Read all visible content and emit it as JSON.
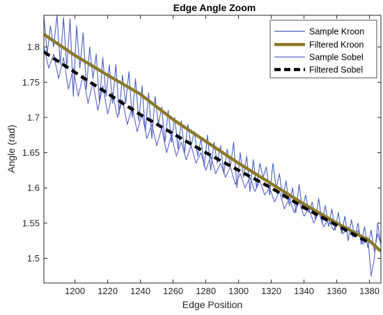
{
  "chart_data": {
    "type": "line",
    "title": "Edge Angle Zoom",
    "xlabel": "Edge Position",
    "ylabel": "Angle (rad)",
    "xlim": [
      1181,
      1387
    ],
    "ylim": [
      1.465,
      1.845
    ],
    "x_ticks": [
      1200,
      1220,
      1240,
      1260,
      1280,
      1300,
      1320,
      1340,
      1360,
      1380
    ],
    "y_ticks": [
      1.5,
      1.55,
      1.6,
      1.65,
      1.7,
      1.75,
      1.8
    ],
    "x_tick_labels": [
      "1200",
      "1220",
      "1240",
      "1260",
      "1280",
      "1300",
      "1320",
      "1340",
      "1360",
      "1380"
    ],
    "y_tick_labels": [
      "1.5",
      "1.55",
      "1.6",
      "1.65",
      "1.7",
      "1.75",
      "1.8"
    ],
    "grid": false,
    "legend_position": "top-right",
    "series": [
      {
        "name": "Sample Kroon",
        "style": "thin-solid",
        "color": "#4a5fc1",
        "x": [
          1181,
          1183,
          1185,
          1187,
          1189,
          1191,
          1193,
          1195,
          1197,
          1199,
          1201,
          1203,
          1205,
          1207,
          1209,
          1211,
          1213,
          1215,
          1217,
          1219,
          1221,
          1223,
          1225,
          1227,
          1229,
          1231,
          1233,
          1235,
          1237,
          1239,
          1241,
          1243,
          1245,
          1247,
          1249,
          1251,
          1253,
          1255,
          1257,
          1259,
          1261,
          1263,
          1265,
          1267,
          1269,
          1271,
          1273,
          1275,
          1277,
          1279,
          1281,
          1283,
          1285,
          1287,
          1289,
          1291,
          1293,
          1295,
          1297,
          1299,
          1301,
          1303,
          1305,
          1307,
          1309,
          1311,
          1313,
          1315,
          1317,
          1319,
          1321,
          1323,
          1325,
          1327,
          1329,
          1331,
          1333,
          1335,
          1337,
          1339,
          1341,
          1343,
          1345,
          1347,
          1349,
          1351,
          1353,
          1355,
          1357,
          1359,
          1361,
          1363,
          1365,
          1367,
          1369,
          1371,
          1373,
          1375,
          1377,
          1379,
          1381,
          1383,
          1385,
          1387
        ],
        "y": [
          1.845,
          1.79,
          1.83,
          1.8,
          1.845,
          1.775,
          1.842,
          1.77,
          1.84,
          1.73,
          1.83,
          1.77,
          1.82,
          1.74,
          1.8,
          1.755,
          1.79,
          1.72,
          1.785,
          1.73,
          1.775,
          1.72,
          1.775,
          1.705,
          1.76,
          1.72,
          1.765,
          1.7,
          1.755,
          1.695,
          1.745,
          1.68,
          1.735,
          1.67,
          1.73,
          1.69,
          1.715,
          1.665,
          1.71,
          1.665,
          1.7,
          1.655,
          1.695,
          1.65,
          1.69,
          1.66,
          1.68,
          1.645,
          1.67,
          1.63,
          1.675,
          1.625,
          1.665,
          1.635,
          1.66,
          1.62,
          1.655,
          1.63,
          1.665,
          1.6,
          1.65,
          1.615,
          1.645,
          1.595,
          1.64,
          1.6,
          1.635,
          1.615,
          1.63,
          1.59,
          1.635,
          1.6,
          1.62,
          1.585,
          1.61,
          1.575,
          1.6,
          1.565,
          1.605,
          1.57,
          1.59,
          1.565,
          1.58,
          1.555,
          1.585,
          1.55,
          1.575,
          1.545,
          1.57,
          1.54,
          1.565,
          1.535,
          1.56,
          1.525,
          1.555,
          1.53,
          1.55,
          1.52,
          1.545,
          1.515,
          1.54,
          1.51,
          1.535,
          1.52
        ],
        "values": [
          1.845,
          1.79,
          1.83,
          1.8,
          1.845,
          1.775,
          1.842,
          1.77,
          1.84,
          1.73,
          1.83,
          1.77,
          1.82,
          1.74,
          1.8,
          1.755,
          1.79,
          1.72,
          1.785,
          1.73,
          1.775,
          1.72,
          1.775,
          1.705,
          1.76,
          1.72,
          1.765,
          1.7,
          1.755,
          1.695,
          1.745,
          1.68,
          1.735,
          1.67,
          1.73,
          1.69,
          1.715,
          1.665,
          1.71,
          1.665,
          1.7,
          1.655,
          1.695,
          1.65,
          1.69,
          1.66,
          1.68,
          1.645,
          1.67,
          1.63,
          1.675,
          1.625,
          1.665,
          1.635,
          1.66,
          1.62,
          1.655,
          1.63,
          1.665,
          1.6,
          1.65,
          1.615,
          1.645,
          1.595,
          1.64,
          1.6,
          1.635,
          1.615,
          1.63,
          1.59,
          1.635,
          1.6,
          1.62,
          1.585,
          1.61,
          1.575,
          1.6,
          1.565,
          1.605,
          1.57,
          1.59,
          1.565,
          1.58,
          1.555,
          1.585,
          1.55,
          1.575,
          1.545,
          1.57,
          1.54,
          1.565,
          1.535,
          1.56,
          1.525,
          1.555,
          1.53,
          1.55,
          1.52,
          1.545,
          1.515,
          1.54,
          1.51,
          1.535,
          1.52
        ]
      },
      {
        "name": "Filtered Kroon",
        "style": "thick-solid",
        "color": "#8b7a28",
        "x": [
          1181,
          1200,
          1220,
          1240,
          1260,
          1280,
          1300,
          1320,
          1340,
          1360,
          1380,
          1387
        ],
        "y": [
          1.818,
          1.788,
          1.76,
          1.733,
          1.697,
          1.666,
          1.635,
          1.606,
          1.577,
          1.55,
          1.525,
          1.51
        ],
        "values": [
          1.818,
          1.788,
          1.76,
          1.733,
          1.697,
          1.666,
          1.635,
          1.606,
          1.577,
          1.55,
          1.525,
          1.51
        ]
      },
      {
        "name": "Sample Sobel",
        "style": "thin-solid",
        "color": "#5b5fc8",
        "x": [
          1181,
          1184,
          1187,
          1190,
          1193,
          1196,
          1199,
          1202,
          1205,
          1208,
          1211,
          1214,
          1217,
          1220,
          1223,
          1226,
          1229,
          1232,
          1235,
          1238,
          1241,
          1244,
          1247,
          1250,
          1253,
          1256,
          1259,
          1262,
          1265,
          1268,
          1271,
          1274,
          1277,
          1280,
          1283,
          1286,
          1289,
          1292,
          1295,
          1298,
          1301,
          1304,
          1307,
          1310,
          1313,
          1316,
          1319,
          1322,
          1325,
          1328,
          1331,
          1334,
          1337,
          1340,
          1343,
          1346,
          1349,
          1352,
          1355,
          1358,
          1361,
          1364,
          1367,
          1370,
          1373,
          1376,
          1379,
          1381,
          1383,
          1385,
          1387
        ],
        "y": [
          1.8,
          1.77,
          1.79,
          1.755,
          1.785,
          1.74,
          1.77,
          1.73,
          1.76,
          1.72,
          1.75,
          1.71,
          1.745,
          1.705,
          1.735,
          1.7,
          1.725,
          1.69,
          1.715,
          1.68,
          1.705,
          1.67,
          1.69,
          1.66,
          1.685,
          1.65,
          1.675,
          1.645,
          1.665,
          1.64,
          1.66,
          1.635,
          1.65,
          1.625,
          1.645,
          1.62,
          1.635,
          1.615,
          1.63,
          1.605,
          1.62,
          1.6,
          1.615,
          1.595,
          1.61,
          1.59,
          1.6,
          1.58,
          1.595,
          1.57,
          1.585,
          1.565,
          1.58,
          1.56,
          1.57,
          1.55,
          1.565,
          1.545,
          1.555,
          1.54,
          1.55,
          1.535,
          1.545,
          1.53,
          1.54,
          1.52,
          1.53,
          1.475,
          1.5,
          1.55,
          1.52
        ],
        "values": [
          1.8,
          1.77,
          1.79,
          1.755,
          1.785,
          1.74,
          1.77,
          1.73,
          1.76,
          1.72,
          1.75,
          1.71,
          1.745,
          1.705,
          1.735,
          1.7,
          1.725,
          1.69,
          1.715,
          1.68,
          1.705,
          1.67,
          1.69,
          1.66,
          1.685,
          1.65,
          1.675,
          1.645,
          1.665,
          1.64,
          1.66,
          1.635,
          1.65,
          1.625,
          1.645,
          1.62,
          1.635,
          1.615,
          1.63,
          1.605,
          1.62,
          1.6,
          1.615,
          1.595,
          1.61,
          1.59,
          1.6,
          1.58,
          1.595,
          1.57,
          1.585,
          1.565,
          1.58,
          1.56,
          1.57,
          1.55,
          1.565,
          1.545,
          1.555,
          1.54,
          1.55,
          1.535,
          1.545,
          1.53,
          1.54,
          1.52,
          1.53,
          1.475,
          1.5,
          1.55,
          1.52
        ]
      },
      {
        "name": "Filtered Sobel",
        "style": "thick-dashed",
        "color": "#000000",
        "x": [
          1181,
          1200,
          1220,
          1240,
          1260,
          1280,
          1300,
          1320,
          1340,
          1360,
          1380
        ],
        "y": [
          1.793,
          1.764,
          1.734,
          1.704,
          1.677,
          1.65,
          1.625,
          1.6,
          1.572,
          1.547,
          1.522
        ],
        "values": [
          1.793,
          1.764,
          1.734,
          1.704,
          1.677,
          1.65,
          1.625,
          1.6,
          1.572,
          1.547,
          1.522
        ]
      }
    ]
  }
}
